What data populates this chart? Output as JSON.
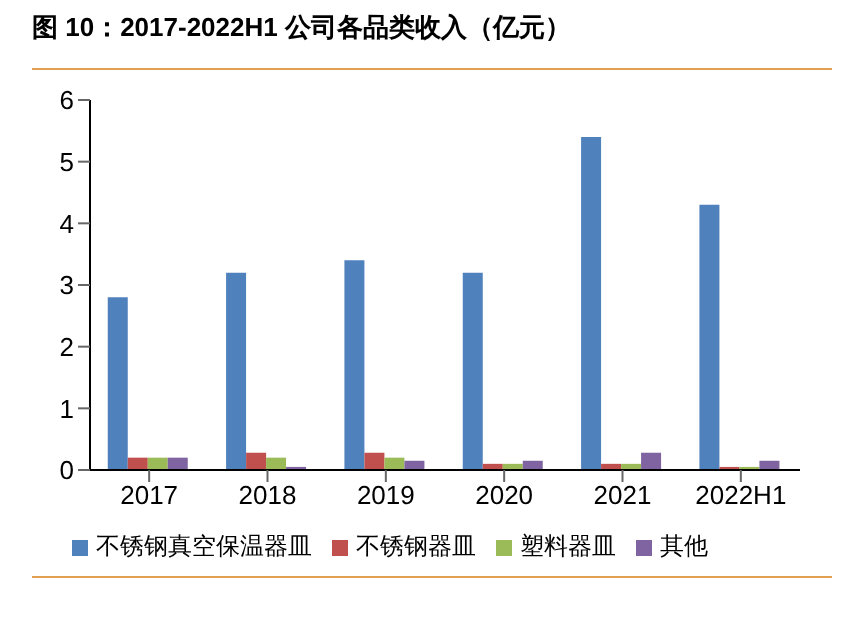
{
  "chart_data": {
    "type": "bar",
    "title": "图 10：2017-2022H1 公司各品类收入（亿元）",
    "categories": [
      "2017",
      "2018",
      "2019",
      "2020",
      "2021",
      "2022H1"
    ],
    "series": [
      {
        "name": "不锈钢真空保温器皿",
        "color": "#4f81bd",
        "values": [
          2.8,
          3.2,
          3.4,
          3.2,
          5.4,
          4.3
        ]
      },
      {
        "name": "不锈钢器皿",
        "color": "#c0504d",
        "values": [
          0.2,
          0.28,
          0.28,
          0.1,
          0.1,
          0.05
        ]
      },
      {
        "name": "塑料器皿",
        "color": "#9bbb59",
        "values": [
          0.2,
          0.2,
          0.2,
          0.1,
          0.1,
          0.05
        ]
      },
      {
        "name": "其他",
        "color": "#8064a2",
        "values": [
          0.2,
          0.05,
          0.15,
          0.15,
          0.28,
          0.15
        ]
      }
    ],
    "ylim": [
      0,
      6
    ],
    "yticks": [
      0,
      1,
      2,
      3,
      4,
      5,
      6
    ],
    "grid": false,
    "legend": "bottom"
  }
}
